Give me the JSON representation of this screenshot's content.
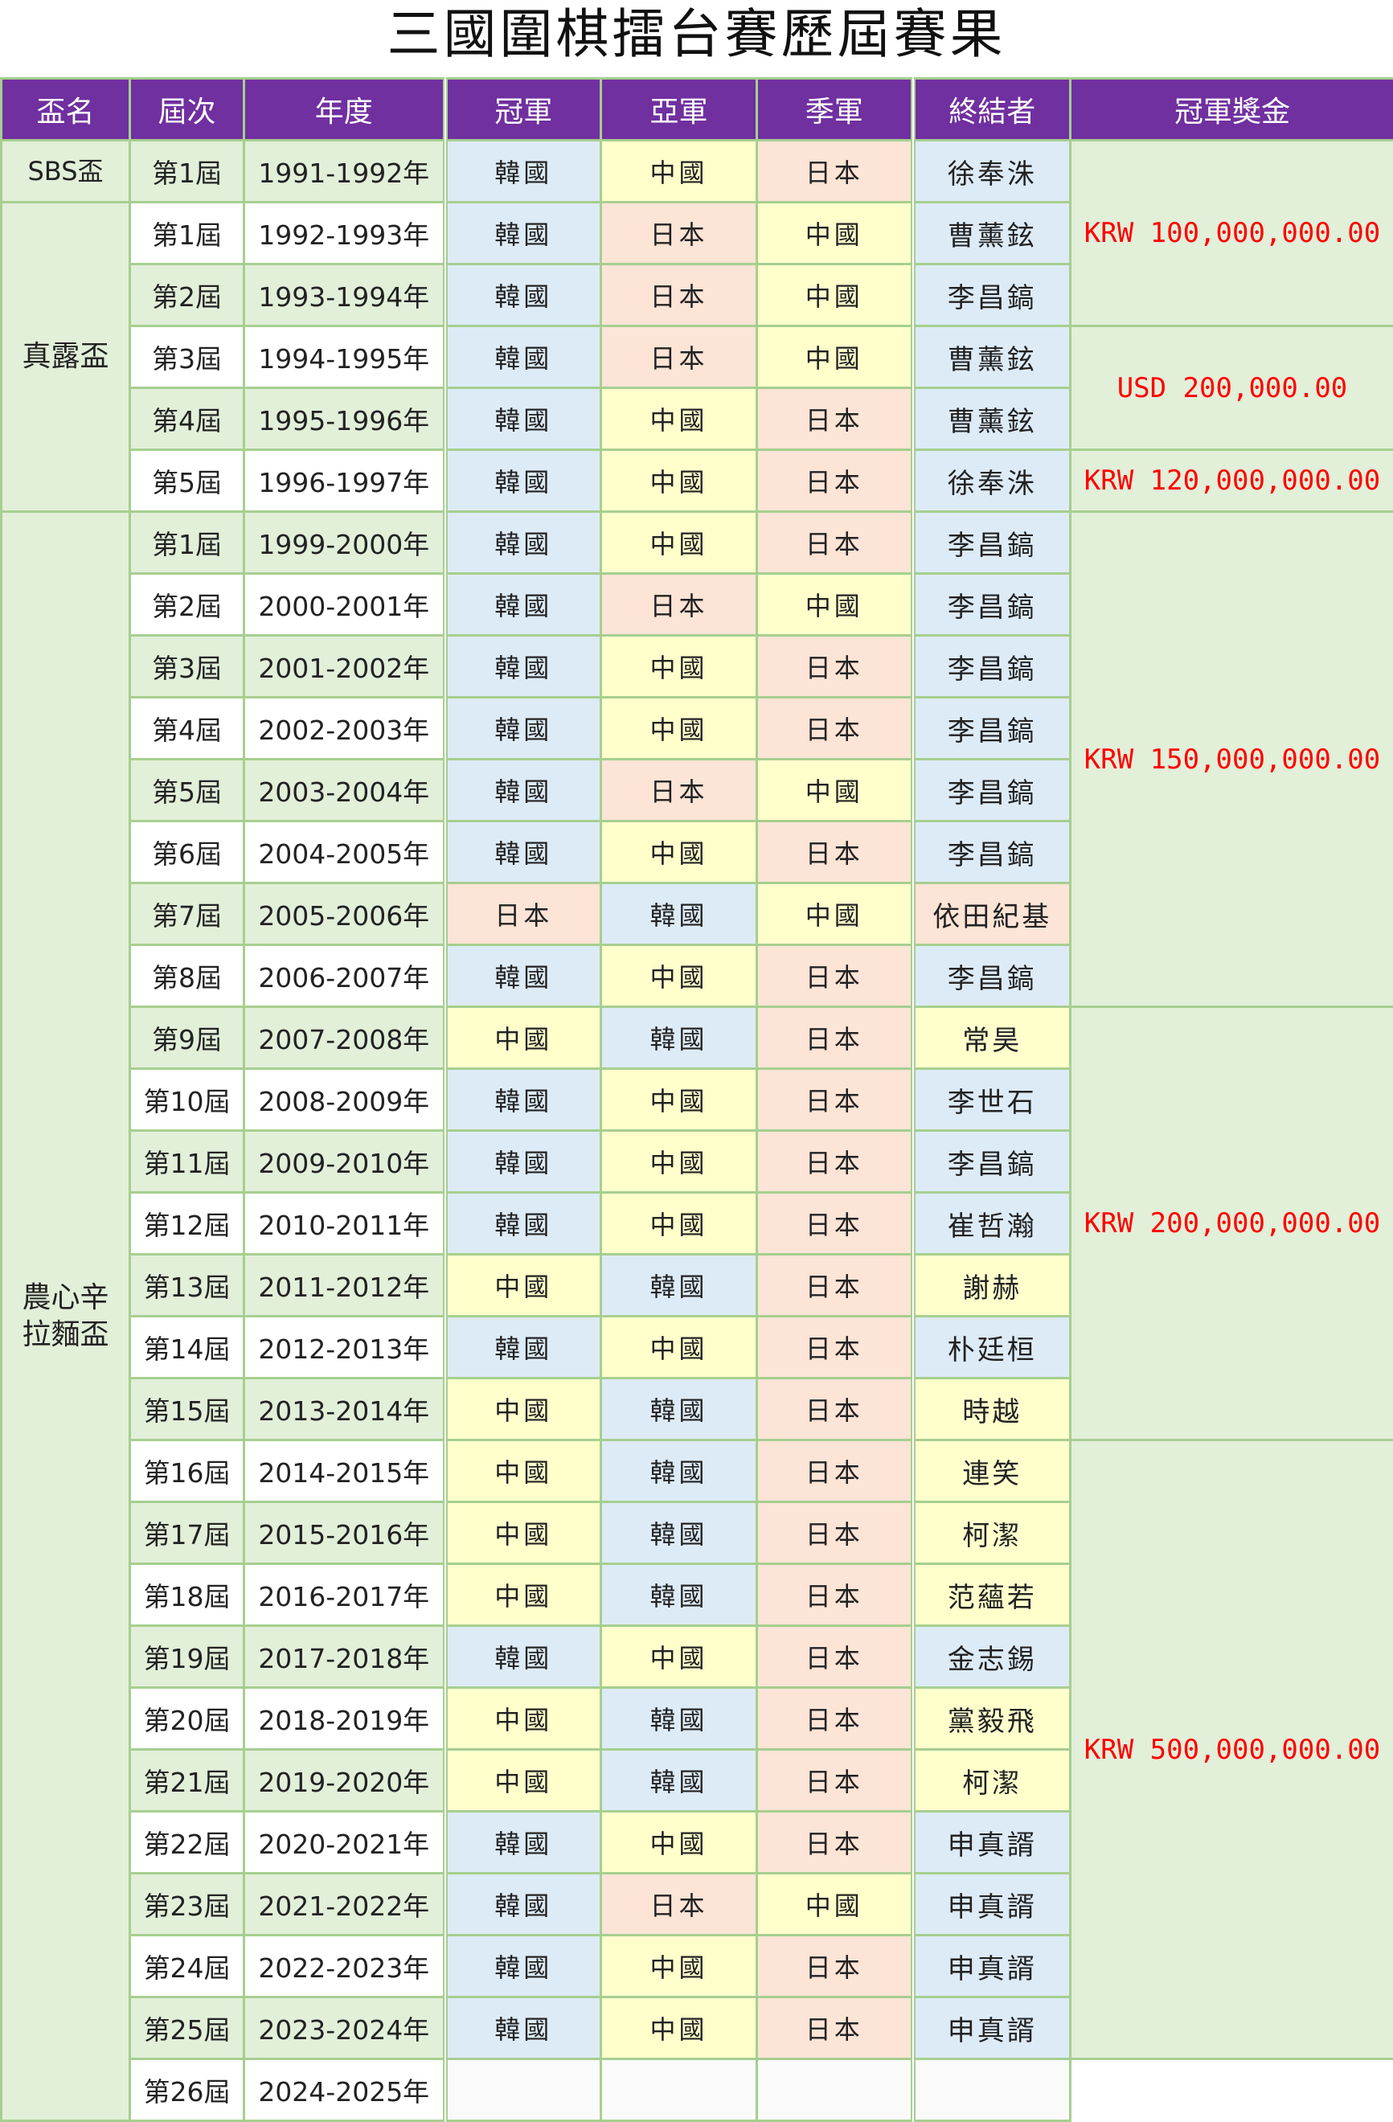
{
  "title": "三國圍棋擂台賽歷屆賽果",
  "headers": [
    "盃名",
    "屆次",
    "年度",
    "冠軍",
    "亞軍",
    "季軍",
    "終結者",
    "冠軍獎金"
  ],
  "colors": {
    "header_bg": "#7030a0",
    "korea": "#ddebf7",
    "china": "#ffffcc",
    "japan": "#fce4d6",
    "cell_green": "#e2efd9",
    "grid": "#a6cf8f",
    "prize_text": "#ff0000"
  },
  "cups": [
    {
      "name": "SBS盃",
      "rows": 1
    },
    {
      "name": "真露盃",
      "rows": 5
    },
    {
      "name": "農心辛\n拉麵盃",
      "rows": 26
    }
  ],
  "prizes": [
    {
      "label": "KRW 100,000,000.00",
      "rows": 3
    },
    {
      "label": "USD 200,000.00",
      "rows": 2
    },
    {
      "label": "KRW 120,000,000.00",
      "rows": 1
    },
    {
      "label": "KRW 150,000,000.00",
      "rows": 8
    },
    {
      "label": "KRW 200,000,000.00",
      "rows": 7
    },
    {
      "label": "KRW 500,000,000.00",
      "rows": 10
    }
  ],
  "rows": [
    {
      "edition": "第1屆",
      "year": "1991-1992年",
      "first": "韓國",
      "second": "中國",
      "third": "日本",
      "finisher": "徐奉洙"
    },
    {
      "edition": "第1屆",
      "year": "1992-1993年",
      "first": "韓國",
      "second": "日本",
      "third": "中國",
      "finisher": "曹薰鉉"
    },
    {
      "edition": "第2屆",
      "year": "1993-1994年",
      "first": "韓國",
      "second": "日本",
      "third": "中國",
      "finisher": "李昌鎬"
    },
    {
      "edition": "第3屆",
      "year": "1994-1995年",
      "first": "韓國",
      "second": "日本",
      "third": "中國",
      "finisher": "曹薰鉉"
    },
    {
      "edition": "第4屆",
      "year": "1995-1996年",
      "first": "韓國",
      "second": "中國",
      "third": "日本",
      "finisher": "曹薰鉉"
    },
    {
      "edition": "第5屆",
      "year": "1996-1997年",
      "first": "韓國",
      "second": "中國",
      "third": "日本",
      "finisher": "徐奉洙"
    },
    {
      "edition": "第1屆",
      "year": "1999-2000年",
      "first": "韓國",
      "second": "中國",
      "third": "日本",
      "finisher": "李昌鎬"
    },
    {
      "edition": "第2屆",
      "year": "2000-2001年",
      "first": "韓國",
      "second": "日本",
      "third": "中國",
      "finisher": "李昌鎬"
    },
    {
      "edition": "第3屆",
      "year": "2001-2002年",
      "first": "韓國",
      "second": "中國",
      "third": "日本",
      "finisher": "李昌鎬"
    },
    {
      "edition": "第4屆",
      "year": "2002-2003年",
      "first": "韓國",
      "second": "中國",
      "third": "日本",
      "finisher": "李昌鎬"
    },
    {
      "edition": "第5屆",
      "year": "2003-2004年",
      "first": "韓國",
      "second": "日本",
      "third": "中國",
      "finisher": "李昌鎬"
    },
    {
      "edition": "第6屆",
      "year": "2004-2005年",
      "first": "韓國",
      "second": "中國",
      "third": "日本",
      "finisher": "李昌鎬"
    },
    {
      "edition": "第7屆",
      "year": "2005-2006年",
      "first": "日本",
      "second": "韓國",
      "third": "中國",
      "finisher": "依田紀基"
    },
    {
      "edition": "第8屆",
      "year": "2006-2007年",
      "first": "韓國",
      "second": "中國",
      "third": "日本",
      "finisher": "李昌鎬"
    },
    {
      "edition": "第9屆",
      "year": "2007-2008年",
      "first": "中國",
      "second": "韓國",
      "third": "日本",
      "finisher": "常昊"
    },
    {
      "edition": "第10屆",
      "year": "2008-2009年",
      "first": "韓國",
      "second": "中國",
      "third": "日本",
      "finisher": "李世石"
    },
    {
      "edition": "第11屆",
      "year": "2009-2010年",
      "first": "韓國",
      "second": "中國",
      "third": "日本",
      "finisher": "李昌鎬"
    },
    {
      "edition": "第12屆",
      "year": "2010-2011年",
      "first": "韓國",
      "second": "中國",
      "third": "日本",
      "finisher": "崔哲瀚"
    },
    {
      "edition": "第13屆",
      "year": "2011-2012年",
      "first": "中國",
      "second": "韓國",
      "third": "日本",
      "finisher": "謝赫"
    },
    {
      "edition": "第14屆",
      "year": "2012-2013年",
      "first": "韓國",
      "second": "中國",
      "third": "日本",
      "finisher": "朴廷桓"
    },
    {
      "edition": "第15屆",
      "year": "2013-2014年",
      "first": "中國",
      "second": "韓國",
      "third": "日本",
      "finisher": "時越"
    },
    {
      "edition": "第16屆",
      "year": "2014-2015年",
      "first": "中國",
      "second": "韓國",
      "third": "日本",
      "finisher": "連笑"
    },
    {
      "edition": "第17屆",
      "year": "2015-2016年",
      "first": "中國",
      "second": "韓國",
      "third": "日本",
      "finisher": "柯潔"
    },
    {
      "edition": "第18屆",
      "year": "2016-2017年",
      "first": "中國",
      "second": "韓國",
      "third": "日本",
      "finisher": "范蘊若"
    },
    {
      "edition": "第19屆",
      "year": "2017-2018年",
      "first": "韓國",
      "second": "中國",
      "third": "日本",
      "finisher": "金志錫"
    },
    {
      "edition": "第20屆",
      "year": "2018-2019年",
      "first": "中國",
      "second": "韓國",
      "third": "日本",
      "finisher": "黨毅飛"
    },
    {
      "edition": "第21屆",
      "year": "2019-2020年",
      "first": "中國",
      "second": "韓國",
      "third": "日本",
      "finisher": "柯潔"
    },
    {
      "edition": "第22屆",
      "year": "2020-2021年",
      "first": "韓國",
      "second": "中國",
      "third": "日本",
      "finisher": "申真諝"
    },
    {
      "edition": "第23屆",
      "year": "2021-2022年",
      "first": "韓國",
      "second": "日本",
      "third": "中國",
      "finisher": "申真諝"
    },
    {
      "edition": "第24屆",
      "year": "2022-2023年",
      "first": "韓國",
      "second": "中國",
      "third": "日本",
      "finisher": "申真諝"
    },
    {
      "edition": "第25屆",
      "year": "2023-2024年",
      "first": "韓國",
      "second": "中國",
      "third": "日本",
      "finisher": "申真諝"
    },
    {
      "edition": "第26屆",
      "year": "2024-2025年",
      "first": "",
      "second": "",
      "third": "",
      "finisher": ""
    }
  ]
}
